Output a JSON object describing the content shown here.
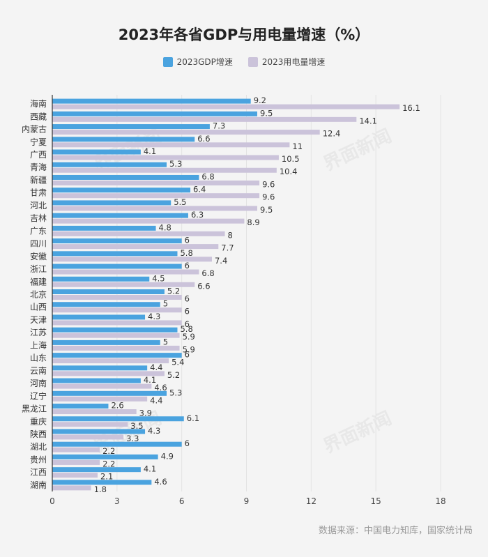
{
  "colors": {
    "gdp": "#4aa3df",
    "power": "#cbc3da",
    "grid": "#e3e3e3",
    "axis": "#333333"
  },
  "source": "数据来源：中国电力知库，国家统计局",
  "watermark": "界面新闻",
  "chart_data": {
    "type": "bar",
    "orientation": "horizontal",
    "title": "2023年各省GDP与用电量增速（%）",
    "xlim": [
      0,
      18
    ],
    "xticks": [
      0,
      3,
      6,
      9,
      12,
      15,
      18
    ],
    "grid": true,
    "legend_position": "top-center",
    "categories": [
      "海南",
      "西藏",
      "内蒙古",
      "宁夏",
      "广西",
      "青海",
      "新疆",
      "甘肃",
      "河北",
      "吉林",
      "广东",
      "四川",
      "安徽",
      "浙江",
      "福建",
      "北京",
      "山西",
      "天津",
      "江苏",
      "上海",
      "山东",
      "云南",
      "河南",
      "辽宁",
      "黑龙江",
      "重庆",
      "陕西",
      "湖北",
      "贵州",
      "江西",
      "湖南"
    ],
    "series": [
      {
        "name": "2023GDP增速",
        "values": [
          9.2,
          9.5,
          7.3,
          6.6,
          4.1,
          5.3,
          6.8,
          6.4,
          5.5,
          6.3,
          4.8,
          6,
          5.8,
          6,
          4.5,
          5.2,
          5,
          4.3,
          5.8,
          5,
          6,
          4.4,
          4.1,
          5.3,
          2.6,
          6.1,
          4.3,
          6,
          4.9,
          4.1,
          4.6
        ]
      },
      {
        "name": "2023用电量增速",
        "values": [
          16.1,
          14.1,
          12.4,
          11,
          10.5,
          10.4,
          9.6,
          9.6,
          9.5,
          8.9,
          8,
          7.7,
          7.4,
          6.8,
          6.6,
          6,
          6,
          6,
          5.9,
          5.9,
          5.4,
          5.2,
          4.6,
          4.4,
          3.9,
          3.5,
          3.3,
          2.2,
          2.2,
          2.1,
          1.8
        ]
      }
    ]
  }
}
